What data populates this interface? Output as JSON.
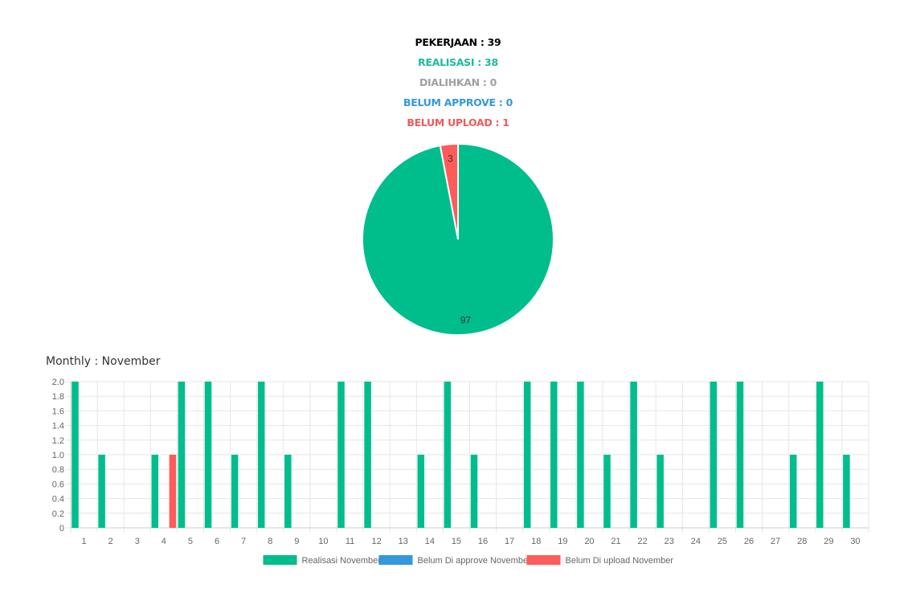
{
  "stats": [
    {
      "label": "PEKERJAAN : 39",
      "color": "#000000"
    },
    {
      "label": "REALISASI : 38",
      "color": "#1abc9c"
    },
    {
      "label": "DIALIHKAN : 0",
      "color": "#a0a0a0"
    },
    {
      "label": "BELUM APPROVE : 0",
      "color": "#3498db"
    },
    {
      "label": "BELUM UPLOAD : 1",
      "color": "#f05a5a"
    }
  ],
  "monthly_title": "Monthly : November",
  "colors": {
    "realisasi": "#00bd8c",
    "approve": "#3498db",
    "upload": "#ff5b5b",
    "grid": "#e6e6e6"
  },
  "chart_data": [
    {
      "type": "pie",
      "slices": [
        {
          "label": "3",
          "value": 3,
          "color": "#ff5b5b"
        },
        {
          "label": "97",
          "value": 97,
          "color": "#00bd8c"
        }
      ]
    },
    {
      "type": "bar",
      "categories": [
        "1",
        "2",
        "3",
        "4",
        "5",
        "6",
        "7",
        "8",
        "9",
        "10",
        "11",
        "12",
        "13",
        "14",
        "15",
        "16",
        "17",
        "18",
        "19",
        "20",
        "21",
        "22",
        "23",
        "24",
        "25",
        "26",
        "27",
        "28",
        "29",
        "30"
      ],
      "series": [
        {
          "name": "Realisasi November",
          "color": "#00bd8c",
          "values": [
            2,
            1,
            0,
            1,
            2,
            2,
            1,
            2,
            1,
            0,
            2,
            2,
            0,
            1,
            2,
            1,
            0,
            2,
            2,
            2,
            1,
            2,
            1,
            0,
            2,
            2,
            0,
            1,
            2,
            1
          ]
        },
        {
          "name": "Belum Di approve November",
          "color": "#3498db",
          "values": [
            0,
            0,
            0,
            0,
            0,
            0,
            0,
            0,
            0,
            0,
            0,
            0,
            0,
            0,
            0,
            0,
            0,
            0,
            0,
            0,
            0,
            0,
            0,
            0,
            0,
            0,
            0,
            0,
            0,
            0
          ]
        },
        {
          "name": "Belum Di upload November",
          "color": "#ff5b5b",
          "values": [
            0,
            0,
            0,
            1,
            0,
            0,
            0,
            0,
            0,
            0,
            0,
            0,
            0,
            0,
            0,
            0,
            0,
            0,
            0,
            0,
            0,
            0,
            0,
            0,
            0,
            0,
            0,
            0,
            0,
            0
          ]
        }
      ],
      "ylim": [
        0,
        2
      ],
      "yticks": [
        "0",
        "0.2",
        "0.4",
        "0.6",
        "0.8",
        "1.0",
        "1.2",
        "1.4",
        "1.6",
        "1.8",
        "2.0"
      ],
      "grid": true,
      "legend": "bottom"
    }
  ]
}
